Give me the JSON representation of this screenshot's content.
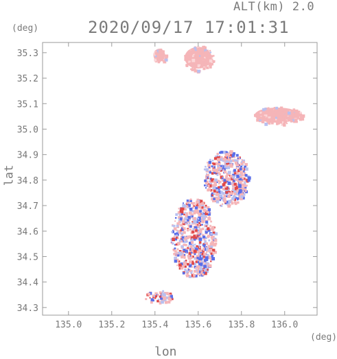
{
  "header": {
    "altitude_label": "ALT(km)  2.0",
    "timestamp": "2020/09/17 17:01:31"
  },
  "axes": {
    "x_label": "lon",
    "y_label": "lat",
    "x_unit": "(deg)",
    "y_unit": "(deg)",
    "x_ticks": [
      "135.0",
      "135.2",
      "135.4",
      "135.6",
      "135.8",
      "136.0"
    ],
    "y_ticks": [
      "35.3",
      "35.2",
      "35.1",
      "35.0",
      "34.9",
      "34.8",
      "34.7",
      "34.6",
      "34.5",
      "34.4",
      "34.3"
    ]
  },
  "map": {
    "extent": {
      "lon_min": 134.88,
      "lon_max": 136.15,
      "lat_min": 34.27,
      "lat_max": 35.34
    },
    "colors": {
      "frame": "#9a9a9a",
      "pink": "#f5b5b8",
      "red": "#e04848",
      "blue": "#5a6ee8",
      "light_blue": "#b8c0f0"
    },
    "echo_regions": [
      {
        "name": "north-top-cell",
        "lon": [
          135.53,
          135.67
        ],
        "lat": [
          35.23,
          35.33
        ],
        "color": "pink"
      },
      {
        "name": "north-left-cell",
        "lon": [
          135.39,
          135.45
        ],
        "lat": [
          35.26,
          35.32
        ],
        "color": "pink"
      },
      {
        "name": "east-cell",
        "lon": [
          135.85,
          136.08
        ],
        "lat": [
          35.02,
          35.09
        ],
        "color": "pink"
      },
      {
        "name": "central-scatter",
        "lon": [
          135.62,
          135.83
        ],
        "lat": [
          34.7,
          34.92
        ],
        "color": "mixed"
      },
      {
        "name": "osaka-bay-band",
        "lon": [
          135.47,
          135.68
        ],
        "lat": [
          34.42,
          34.73
        ],
        "color": "mixed"
      },
      {
        "name": "south-scatter",
        "lon": [
          135.35,
          135.48
        ],
        "lat": [
          34.32,
          34.37
        ],
        "color": "mixed"
      }
    ]
  }
}
